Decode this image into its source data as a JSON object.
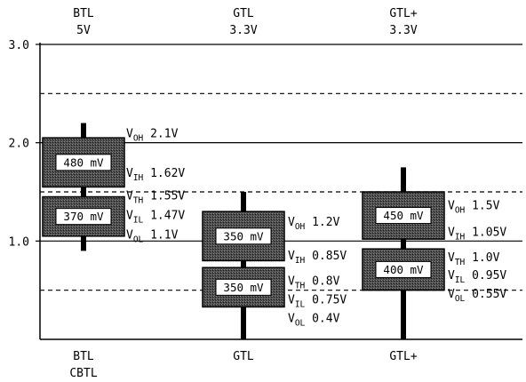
{
  "header": [
    {
      "name": "BTL",
      "voltage": "5V"
    },
    {
      "name": "GTL",
      "voltage": "3.3V"
    },
    {
      "name": "GTL+",
      "voltage": "3.3V"
    }
  ],
  "footer": [
    {
      "line1": "BTL",
      "line2": "CBTL"
    },
    {
      "line1": "GTL",
      "line2": ""
    },
    {
      "line1": "GTL+",
      "line2": ""
    }
  ],
  "y_axis": {
    "ticks": [
      {
        "value": 1.0,
        "label": "1.0"
      },
      {
        "value": 2.0,
        "label": "2.0"
      },
      {
        "value": 3.0,
        "label": "3.0"
      }
    ]
  },
  "reference_lines": [
    {
      "value": 3.0,
      "style": "solid"
    },
    {
      "value": 2.5,
      "style": "dashed"
    },
    {
      "value": 2.0,
      "style": "solid"
    },
    {
      "value": 1.5,
      "style": "dashed"
    },
    {
      "value": 1.0,
      "style": "solid"
    },
    {
      "value": 0.5,
      "style": "dashed"
    }
  ],
  "families": [
    {
      "id": "btl",
      "stem": [
        0.9,
        2.2
      ],
      "bands": [
        {
          "low": 1.55,
          "high": 2.05,
          "label": "480 mV"
        },
        {
          "low": 1.05,
          "high": 1.45,
          "label": "370 mV"
        }
      ],
      "levels": [
        {
          "v": "V",
          "sub": "OH",
          "text": " 2.1V",
          "at": 2.1
        },
        {
          "v": "V",
          "sub": "IH",
          "text": " 1.62V",
          "at": 1.7
        },
        {
          "v": "V",
          "sub": "TH",
          "text": " 1.55V",
          "at": 1.47
        },
        {
          "v": "V",
          "sub": "IL",
          "text": " 1.47V",
          "at": 1.27
        },
        {
          "v": "V",
          "sub": "OL",
          "text": " 1.1V",
          "at": 1.07
        }
      ]
    },
    {
      "id": "gtl",
      "stem": [
        0.0,
        1.5
      ],
      "bands": [
        {
          "low": 0.8,
          "high": 1.3,
          "label": "350 mV"
        },
        {
          "low": 0.33,
          "high": 0.73,
          "label": "350 mV"
        }
      ],
      "levels": [
        {
          "v": "V",
          "sub": "OH",
          "text": " 1.2V",
          "at": 1.2
        },
        {
          "v": "V",
          "sub": "IH",
          "text": " 0.85V",
          "at": 0.86
        },
        {
          "v": "V",
          "sub": "TH",
          "text": " 0.8V",
          "at": 0.6
        },
        {
          "v": "V",
          "sub": "IL",
          "text": " 0.75V",
          "at": 0.41
        },
        {
          "v": "V",
          "sub": "OL",
          "text": " 0.4V",
          "at": 0.22
        }
      ]
    },
    {
      "id": "gtlplus",
      "stem": [
        0.0,
        1.75
      ],
      "bands": [
        {
          "low": 1.02,
          "high": 1.5,
          "label": "450 mV"
        },
        {
          "low": 0.5,
          "high": 0.92,
          "label": "400 mV"
        }
      ],
      "levels": [
        {
          "v": "V",
          "sub": "OH",
          "text": " 1.5V",
          "at": 1.37
        },
        {
          "v": "V",
          "sub": "IH",
          "text": " 1.05V",
          "at": 1.1
        },
        {
          "v": "V",
          "sub": "TH",
          "text": " 1.0V",
          "at": 0.84
        },
        {
          "v": "V",
          "sub": "IL",
          "text": " 0.95V",
          "at": 0.66
        },
        {
          "v": "V",
          "sub": "OL",
          "text": " 0.55V",
          "at": 0.47
        }
      ]
    }
  ]
}
